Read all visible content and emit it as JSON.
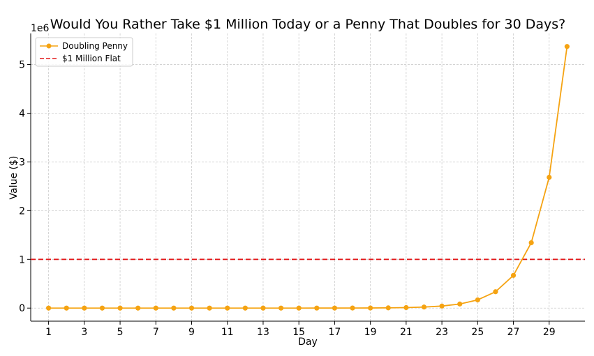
{
  "chart_data": {
    "type": "line",
    "title": "Would You Rather Take $1 Million Today or a Penny That Doubles for 30 Days?",
    "xlabel": "Day",
    "ylabel": "Value ($)",
    "y_offset_text": "1e6",
    "xlim": [
      0,
      31
    ],
    "ylim": [
      -268435,
      5636880
    ],
    "x_ticks": [
      1,
      3,
      5,
      7,
      9,
      11,
      13,
      15,
      17,
      19,
      21,
      23,
      25,
      27,
      29
    ],
    "y_ticks": [
      0,
      1000000,
      2000000,
      3000000,
      4000000,
      5000000
    ],
    "y_tick_labels": [
      "0",
      "1",
      "2",
      "3",
      "4",
      "5"
    ],
    "grid": true,
    "legend_position": "top-left",
    "x": [
      1,
      2,
      3,
      4,
      5,
      6,
      7,
      8,
      9,
      10,
      11,
      12,
      13,
      14,
      15,
      16,
      17,
      18,
      19,
      20,
      21,
      22,
      23,
      24,
      25,
      26,
      27,
      28,
      29,
      30
    ],
    "series": [
      {
        "name": "Doubling Penny",
        "color": "#f5a312",
        "marker": "circle",
        "values": [
          0.01,
          0.02,
          0.04,
          0.08,
          0.16,
          0.32,
          0.64,
          1.28,
          2.56,
          5.12,
          10.24,
          20.48,
          40.96,
          81.92,
          163.84,
          327.68,
          655.36,
          1310.72,
          2621.44,
          5242.88,
          10485.76,
          20971.52,
          41943.04,
          83886.08,
          167772.16,
          335544.32,
          671088.64,
          1342177.28,
          2684354.56,
          5368709.12
        ]
      },
      {
        "name": "$1 Million Flat",
        "color": "#e31a1c",
        "style": "dashed",
        "value": 1000000
      }
    ]
  }
}
